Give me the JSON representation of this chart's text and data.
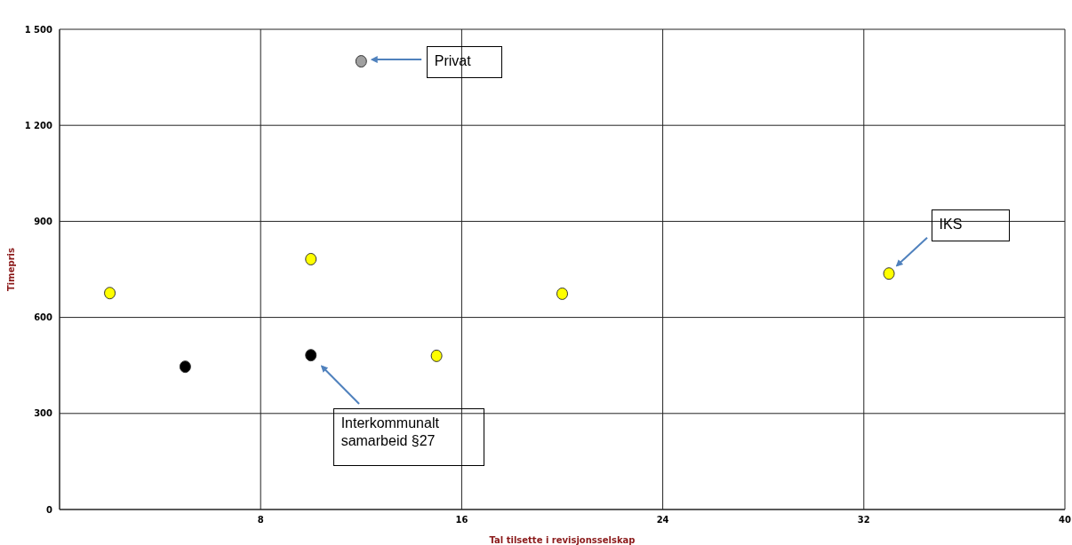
{
  "chart_data": {
    "type": "scatter",
    "xlabel": "Tal tilsette i revisjonsselskap",
    "ylabel": "Timepris",
    "series": [
      {
        "color": "#ffff00",
        "x": [
          2,
          10,
          15,
          20,
          33
        ],
        "values": [
          676,
          782,
          480,
          674,
          737
        ]
      },
      {
        "color": "#000000",
        "x": [
          5,
          10
        ],
        "values": [
          446,
          482
        ]
      },
      {
        "color": "#a0a0a0",
        "x": [
          12
        ],
        "values": [
          1400
        ]
      }
    ],
    "xlim": [
      0,
      40
    ],
    "xticks": [
      {
        "value": 0,
        "label": null
      },
      8,
      16,
      24,
      32,
      40
    ],
    "ylim": [
      0,
      1500
    ],
    "yticks": [
      0,
      300,
      600,
      900,
      {
        "value": 1200,
        "label": "1 200"
      },
      {
        "value": 1500,
        "label": "1 500"
      }
    ],
    "grid": true,
    "marker": "circle",
    "annotations": [
      "Privat",
      "IKS",
      "Interkommunalt samarbeid §27"
    ]
  }
}
